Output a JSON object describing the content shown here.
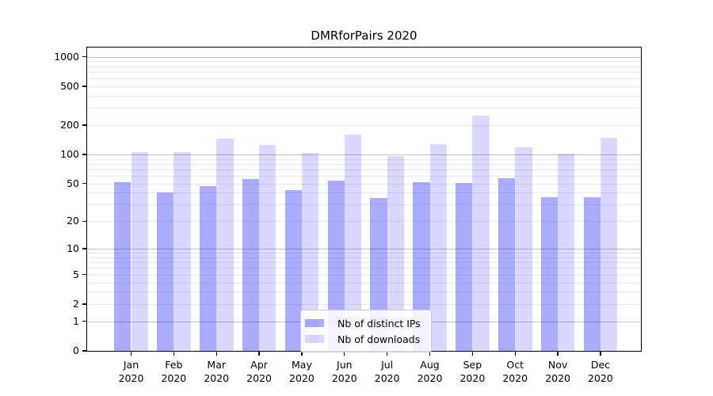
{
  "chart_data": {
    "type": "bar",
    "title": "DMRforPairs 2020",
    "categories": [
      "Jan 2020",
      "Feb 2020",
      "Mar 2020",
      "Apr 2020",
      "May 2020",
      "Jun 2020",
      "Jul 2020",
      "Aug 2020",
      "Sep 2020",
      "Oct 2020",
      "Nov 2020",
      "Dec 2020"
    ],
    "series": [
      {
        "name": "Nb of distinct IPs",
        "color": "rgba(0,0,255,0.33)",
        "values": [
          52,
          40,
          47,
          56,
          43,
          54,
          35,
          52,
          51,
          57,
          36,
          36
        ]
      },
      {
        "name": "Nb of downloads",
        "color": "rgba(0,0,255,0.15)",
        "values": [
          105,
          105,
          145,
          125,
          104,
          160,
          96,
          127,
          248,
          118,
          101,
          148
        ]
      }
    ],
    "yscale": "log1p",
    "ylim": [
      0,
      1000
    ],
    "ytick_labels": [
      "0",
      "1",
      "2",
      "5",
      "10",
      "20",
      "50",
      "100",
      "200",
      "500",
      "1000"
    ],
    "ytick_values": [
      0,
      1,
      2,
      5,
      10,
      20,
      50,
      100,
      200,
      500,
      1000
    ],
    "grid": {
      "major_values": [
        1,
        10,
        100,
        1000
      ],
      "major_color": "#c3c3c3",
      "minor_color": "#ebebeb"
    },
    "legend": {
      "position": "lower-center"
    },
    "colors": {
      "spine": "#000000",
      "background": "#ffffff",
      "text": "#000000"
    }
  }
}
